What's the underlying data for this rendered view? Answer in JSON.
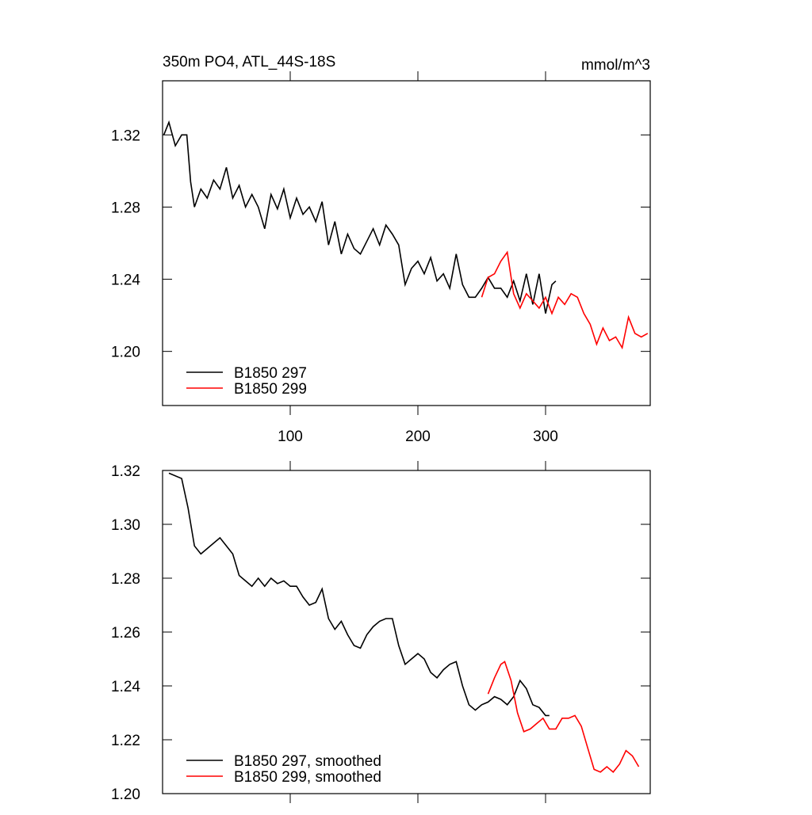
{
  "chart_data": [
    {
      "type": "line",
      "title": "350m PO4, ATL_44S-18S",
      "units": "mmol/m^3",
      "xlim": [
        0,
        382
      ],
      "xticks": [
        100,
        200,
        300
      ],
      "ylim": [
        1.17,
        1.35
      ],
      "yticks": [
        {
          "value": 1.2,
          "label": "1.20"
        },
        1.24,
        1.28,
        1.32
      ],
      "legend": "lower left",
      "series": [
        {
          "name": "B1850 297",
          "color": "#000000",
          "x": [
            1,
            5,
            10,
            15,
            19,
            22,
            25,
            30,
            35,
            40,
            45,
            50,
            55,
            60,
            65,
            70,
            75,
            80,
            85,
            90,
            95,
            100,
            105,
            110,
            115,
            120,
            125,
            130,
            135,
            140,
            145,
            150,
            155,
            160,
            165,
            170,
            175,
            180,
            185,
            190,
            195,
            200,
            205,
            210,
            215,
            220,
            225,
            230,
            235,
            240,
            245,
            250,
            255,
            260,
            265,
            270,
            275,
            280,
            285,
            290,
            295,
            300,
            305,
            308
          ],
          "values": [
            1.32,
            1.327,
            1.314,
            1.32,
            1.32,
            1.294,
            1.28,
            1.29,
            1.285,
            1.295,
            1.29,
            1.302,
            1.285,
            1.292,
            1.28,
            1.287,
            1.28,
            1.268,
            1.287,
            1.279,
            1.29,
            1.274,
            1.285,
            1.276,
            1.28,
            1.272,
            1.283,
            1.259,
            1.272,
            1.254,
            1.265,
            1.257,
            1.254,
            1.261,
            1.268,
            1.259,
            1.27,
            1.265,
            1.259,
            1.237,
            1.246,
            1.25,
            1.243,
            1.252,
            1.239,
            1.243,
            1.235,
            1.254,
            1.237,
            1.23,
            1.23,
            1.235,
            1.241,
            1.235,
            1.235,
            1.23,
            1.239,
            1.228,
            1.243,
            1.226,
            1.243,
            1.221,
            1.237,
            1.239
          ]
        },
        {
          "name": "B1850 299",
          "color": "#ff0000",
          "x": [
            250,
            255,
            260,
            265,
            270,
            275,
            280,
            285,
            290,
            295,
            300,
            305,
            310,
            315,
            320,
            325,
            330,
            335,
            340,
            345,
            350,
            355,
            360,
            365,
            370,
            375,
            380
          ],
          "values": [
            1.23,
            1.241,
            1.243,
            1.25,
            1.255,
            1.232,
            1.224,
            1.232,
            1.228,
            1.224,
            1.23,
            1.221,
            1.23,
            1.226,
            1.232,
            1.23,
            1.221,
            1.215,
            1.204,
            1.213,
            1.206,
            1.208,
            1.202,
            1.219,
            1.21,
            1.208,
            1.21
          ]
        }
      ]
    },
    {
      "type": "line",
      "xlim": [
        0,
        382
      ],
      "xticks": [
        100,
        200,
        300
      ],
      "ylim": [
        1.2,
        1.32
      ],
      "yticks": [
        {
          "value": 1.2,
          "label": "1.20"
        },
        1.22,
        1.24,
        1.26,
        1.28,
        {
          "value": 1.3,
          "label": "1.30"
        },
        1.32
      ],
      "legend": "lower left",
      "series": [
        {
          "name": "B1850 297, smoothed",
          "color": "#000000",
          "x": [
            5,
            15,
            20,
            25,
            30,
            35,
            40,
            45,
            50,
            55,
            60,
            65,
            70,
            75,
            80,
            85,
            90,
            95,
            100,
            105,
            110,
            115,
            120,
            125,
            130,
            135,
            140,
            145,
            150,
            155,
            160,
            165,
            170,
            175,
            180,
            185,
            190,
            195,
            200,
            205,
            210,
            215,
            220,
            225,
            230,
            235,
            240,
            245,
            250,
            255,
            260,
            265,
            270,
            275,
            280,
            285,
            290,
            295,
            300,
            303
          ],
          "values": [
            1.319,
            1.317,
            1.306,
            1.292,
            1.289,
            1.291,
            1.293,
            1.295,
            1.292,
            1.289,
            1.281,
            1.279,
            1.277,
            1.28,
            1.277,
            1.28,
            1.278,
            1.279,
            1.277,
            1.277,
            1.273,
            1.27,
            1.271,
            1.276,
            1.265,
            1.261,
            1.264,
            1.259,
            1.255,
            1.254,
            1.259,
            1.262,
            1.264,
            1.265,
            1.265,
            1.255,
            1.248,
            1.25,
            1.252,
            1.25,
            1.245,
            1.243,
            1.246,
            1.248,
            1.249,
            1.24,
            1.233,
            1.231,
            1.233,
            1.234,
            1.236,
            1.235,
            1.233,
            1.236,
            1.242,
            1.239,
            1.233,
            1.232,
            1.229,
            1.229
          ]
        },
        {
          "name": "B1850 299, smoothed",
          "color": "#ff0000",
          "x": [
            255,
            260,
            265,
            268,
            273,
            278,
            283,
            288,
            293,
            298,
            303,
            308,
            313,
            318,
            323,
            328,
            333,
            338,
            343,
            348,
            353,
            358,
            363,
            368,
            373
          ],
          "values": [
            1.237,
            1.243,
            1.248,
            1.249,
            1.242,
            1.23,
            1.223,
            1.224,
            1.226,
            1.228,
            1.224,
            1.224,
            1.228,
            1.228,
            1.229,
            1.225,
            1.217,
            1.209,
            1.208,
            1.21,
            1.208,
            1.211,
            1.216,
            1.214,
            1.21
          ]
        }
      ]
    }
  ]
}
